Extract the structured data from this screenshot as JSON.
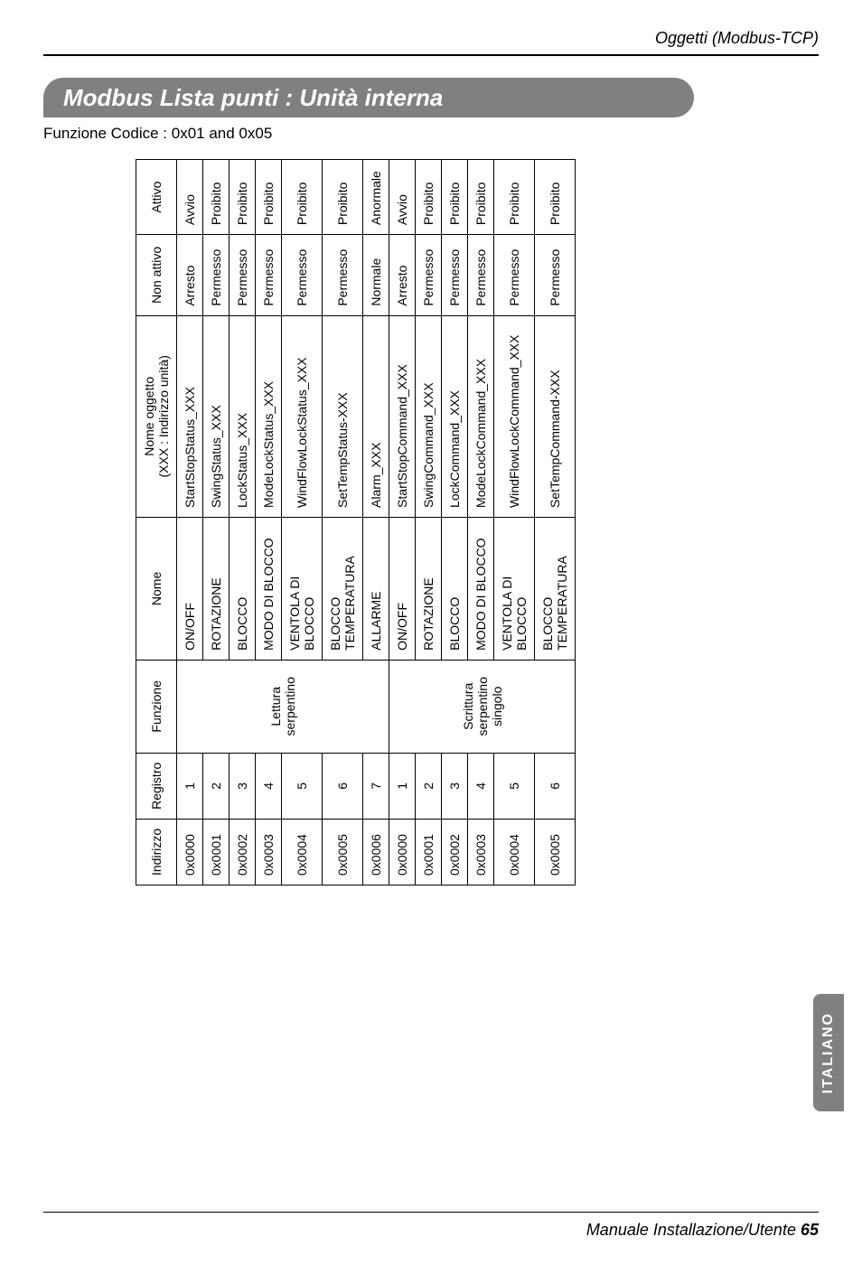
{
  "header": {
    "right": "Oggetti (Modbus-TCP)"
  },
  "title": "Modbus Lista punti  : Unità interna",
  "subtitle": "Funzione Codice : 0x01 and 0x05",
  "side_tab": "ITALIANO",
  "footer": {
    "text_plain": "Manuale Installazione/Utente ",
    "page": "65"
  },
  "table": {
    "headers": {
      "indirizzo": "Indirizzo",
      "registro": "Registro",
      "funzione": "Funzione",
      "nome": "Nome",
      "oggetto_l1": "Nome oggetto",
      "oggetto_l2": "(XXX : Indirizzo unità)",
      "non_attivo": "Non attivo",
      "attivo": "Attivo"
    },
    "funzione_groups": {
      "read": "Lettura serpentino",
      "write": "Scrittura serpentino singolo"
    },
    "rows": [
      {
        "ind": "0x0000",
        "reg": "1",
        "nome": "ON/OFF",
        "ogg": "StartStopStatus_XXX",
        "na": "Arresto",
        "att": "Avvio"
      },
      {
        "ind": "0x0001",
        "reg": "2",
        "nome": "ROTAZIONE",
        "ogg": "SwingStatus_XXX",
        "na": "Permesso",
        "att": "Proibito"
      },
      {
        "ind": "0x0002",
        "reg": "3",
        "nome": "BLOCCO",
        "ogg": "LockStatus_XXX",
        "na": "Permesso",
        "att": "Proibito"
      },
      {
        "ind": "0x0003",
        "reg": "4",
        "nome": "MODO DI BLOCCO",
        "ogg": "ModeLockStatus_XXX",
        "na": "Permesso",
        "att": "Proibito"
      },
      {
        "ind": "0x0004",
        "reg": "5",
        "nome": "VENTOLA DI BLOCCO",
        "ogg": "WindFlowLockStatus_XXX",
        "na": "Permesso",
        "att": "Proibito"
      },
      {
        "ind": "0x0005",
        "reg": "6",
        "nome": "BLOCCO TEMPERATURA",
        "ogg": "SetTempStatus-XXX",
        "na": "Permesso",
        "att": "Proibito"
      },
      {
        "ind": "0x0006",
        "reg": "7",
        "nome": "ALLARME",
        "ogg": "Alarm_XXX",
        "na": "Normale",
        "att": "Anormale"
      },
      {
        "ind": "0x0000",
        "reg": "1",
        "nome": "ON/OFF",
        "ogg": "StartStopCommand_XXX",
        "na": "Arresto",
        "att": "Avvio"
      },
      {
        "ind": "0x0001",
        "reg": "2",
        "nome": "ROTAZIONE",
        "ogg": "SwingCommand_XXX",
        "na": "Permesso",
        "att": "Proibito"
      },
      {
        "ind": "0x0002",
        "reg": "3",
        "nome": "BLOCCO",
        "ogg": "LockCommand_XXX",
        "na": "Permesso",
        "att": "Proibito"
      },
      {
        "ind": "0x0003",
        "reg": "4",
        "nome": "MODO DI BLOCCO",
        "ogg": "ModeLockCommand_XXX",
        "na": "Permesso",
        "att": "Proibito"
      },
      {
        "ind": "0x0004",
        "reg": "5",
        "nome": "VENTOLA DI BLOCCO",
        "ogg": "WindFlowLockCommand_XXX",
        "na": "Permesso",
        "att": "Proibito"
      },
      {
        "ind": "0x0005",
        "reg": "6",
        "nome": "BLOCCO TEMPERATURA",
        "ogg": "SetTempCommand-XXX",
        "na": "Permesso",
        "att": "Proibito"
      }
    ]
  }
}
